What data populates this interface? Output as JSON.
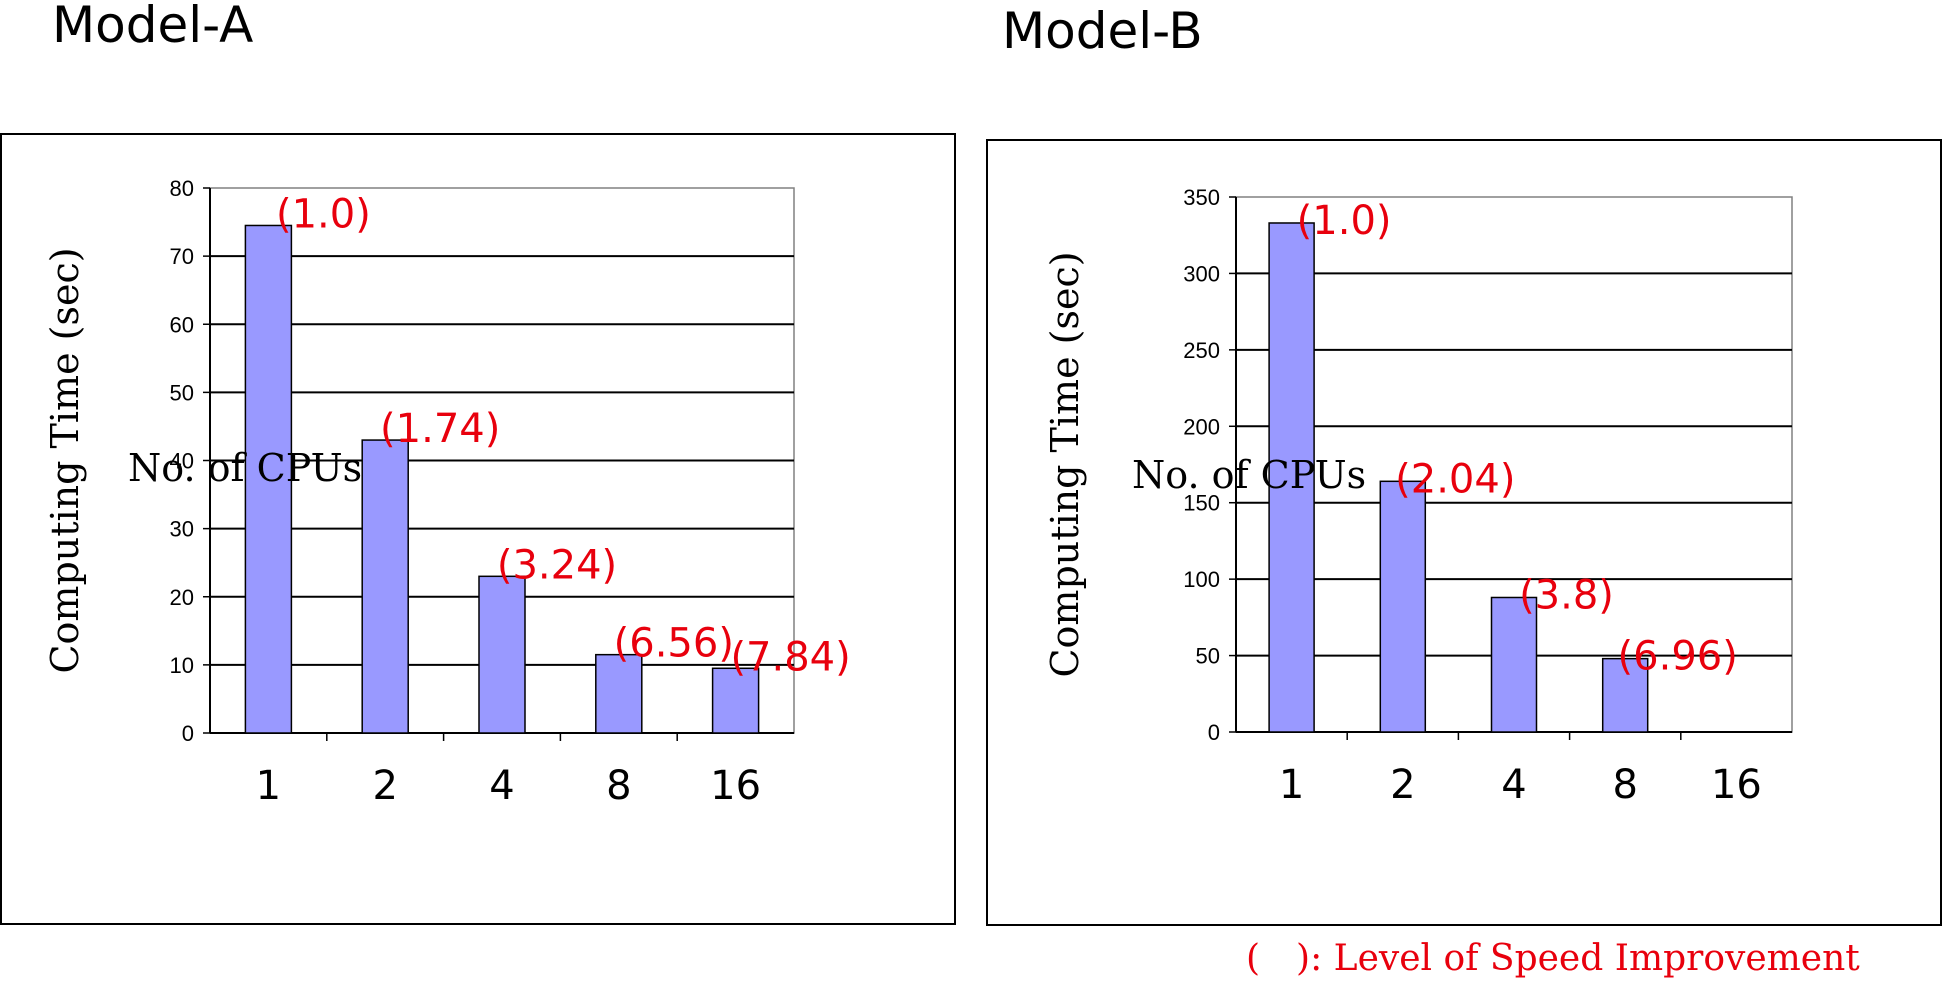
{
  "chart_data": [
    {
      "type": "bar",
      "title": "Model-A",
      "xlabel": "No. of CPUs",
      "ylabel": "Computing Time (sec)",
      "categories": [
        "1",
        "2",
        "4",
        "8",
        "16"
      ],
      "values": [
        74.5,
        43.0,
        23.0,
        11.5,
        9.5
      ],
      "data_labels": [
        "(1.0)",
        "(1.74)",
        "(3.24)",
        "(6.56)",
        "(7.84)"
      ],
      "ylim": [
        0,
        80
      ],
      "yticks": [
        "0",
        "10",
        "20",
        "30",
        "40",
        "50",
        "60",
        "70",
        "80"
      ],
      "grid": true,
      "bar_color": "#9999ff",
      "label_color": "#e8000d"
    },
    {
      "type": "bar",
      "title": "Model-B",
      "xlabel": "No. of CPUs",
      "ylabel": "Computing Time (sec)",
      "categories": [
        "1",
        "2",
        "4",
        "8",
        "16"
      ],
      "values": [
        333,
        164,
        88,
        48,
        null
      ],
      "data_labels": [
        "(1.0)",
        "(2.04)",
        "(3.8)",
        "(6.96)",
        ""
      ],
      "ylim": [
        0,
        350
      ],
      "yticks": [
        "0",
        "50",
        "100",
        "150",
        "200",
        "250",
        "300",
        "350"
      ],
      "grid": true,
      "bar_color": "#9999ff",
      "label_color": "#e8000d"
    }
  ],
  "legend_note": "(　): Level of Speed Improvement"
}
